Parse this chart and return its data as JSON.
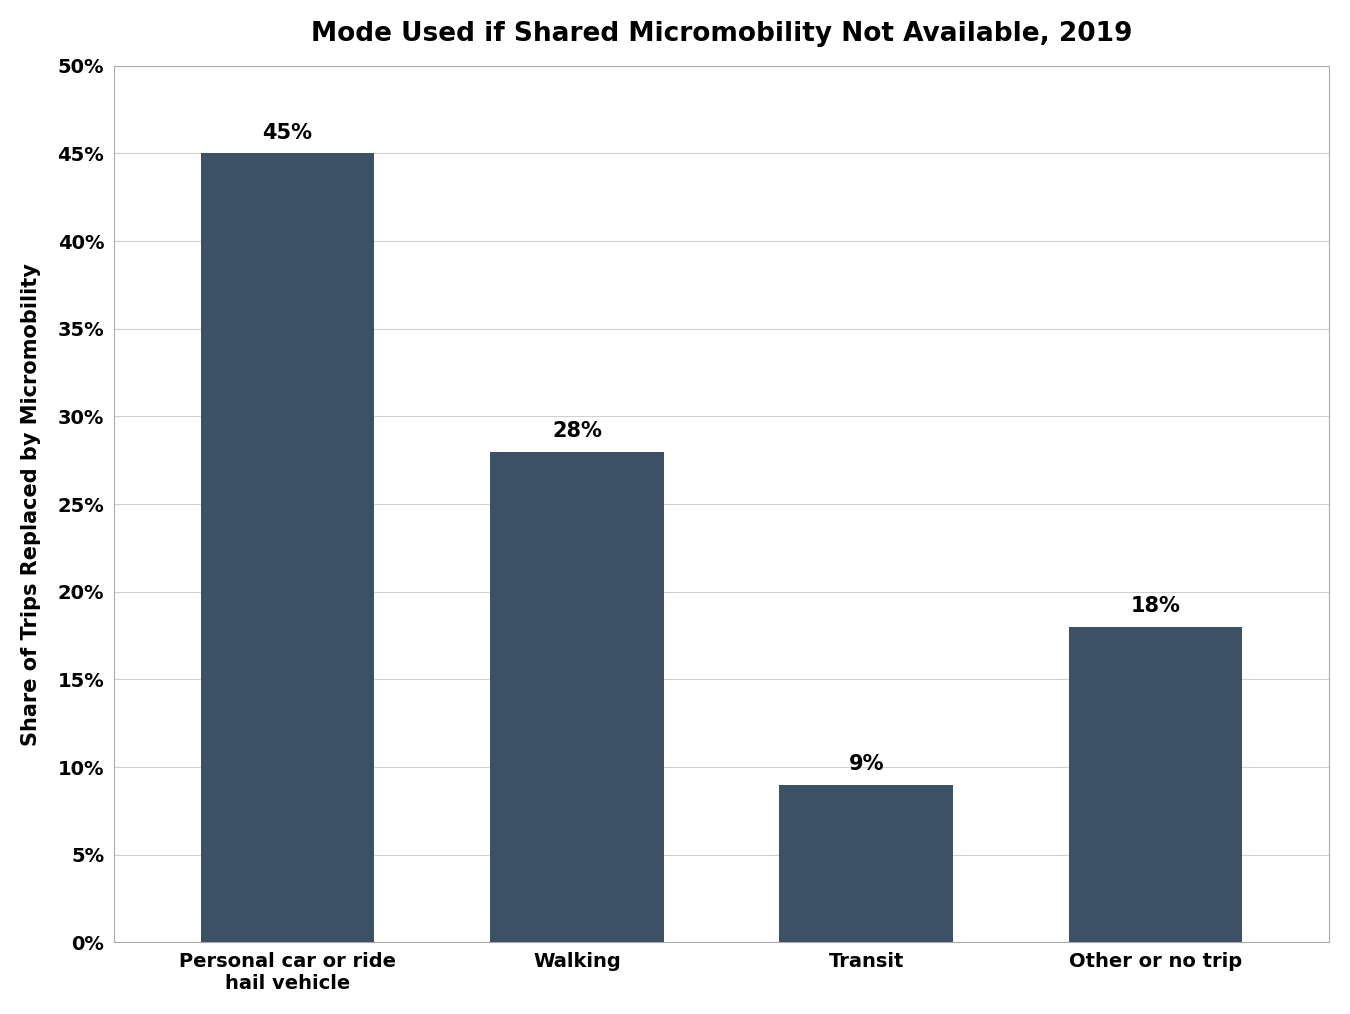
{
  "title": "Mode Used if Shared Micromobility Not Available, 2019",
  "categories": [
    "Personal car or ride\nhail vehicle",
    "Walking",
    "Transit",
    "Other or no trip"
  ],
  "values": [
    45,
    28,
    9,
    18
  ],
  "labels": [
    "45%",
    "28%",
    "9%",
    "18%"
  ],
  "bar_color": "#3d5166",
  "ylabel": "Share of Trips Replaced by Micromobility",
  "ylim": [
    0,
    50
  ],
  "yticks": [
    0,
    5,
    10,
    15,
    20,
    25,
    30,
    35,
    40,
    45,
    50
  ],
  "ytick_labels": [
    "0%",
    "5%",
    "10%",
    "15%",
    "20%",
    "25%",
    "30%",
    "35%",
    "40%",
    "45%",
    "50%"
  ],
  "title_fontsize": 19,
  "label_fontsize": 15,
  "tick_fontsize": 14,
  "bar_label_fontsize": 15,
  "background_color": "#ffffff",
  "spine_color": "#aaaaaa",
  "grid_color": "#d0d0d0",
  "bar_width": 0.6
}
